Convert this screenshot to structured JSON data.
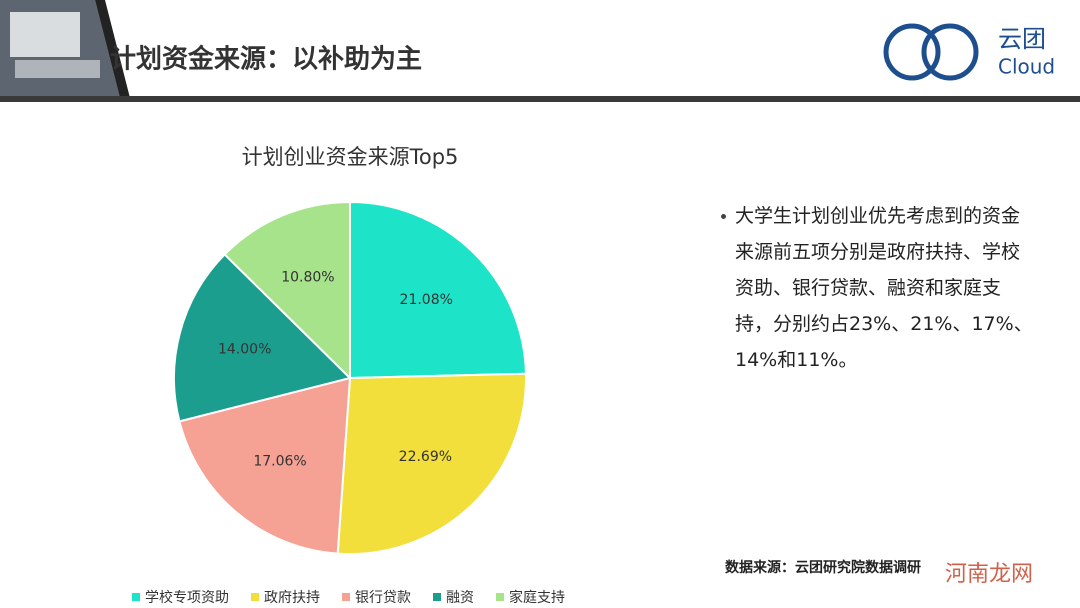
{
  "header": {
    "title": "计划资金来源：以补助为主",
    "logo_name": "云团",
    "logo_sub": "Cloud"
  },
  "chart_data": {
    "type": "pie",
    "title": "计划创业资金来源Top5",
    "categories": [
      "学校专项资助",
      "政府扶持",
      "银行贷款",
      "融资",
      "家庭支持"
    ],
    "values": [
      21.08,
      22.69,
      17.06,
      14.0,
      10.8
    ],
    "value_labels": [
      "21.08%",
      "22.69%",
      "17.06%",
      "14.00%",
      "10.80%"
    ],
    "colors": [
      "#1de3c9",
      "#f3df3c",
      "#f5a294",
      "#1c9e8f",
      "#a6e38b"
    ],
    "legend": "bottom"
  },
  "note": {
    "text": "大学生计划创业优先考虑到的资金来源前五项分别是政府扶持、学校资助、银行贷款、融资和家庭支持，分别约占23%、21%、17%、14%和11%。"
  },
  "source": "数据来源：云团研究院数据调研",
  "watermark": "河南龙网"
}
